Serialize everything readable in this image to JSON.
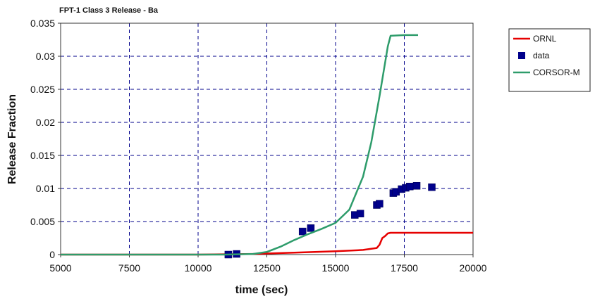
{
  "chart_data": {
    "type": "line",
    "title": "FPT-1 Class 3 Release - Ba",
    "xlabel": "time (sec)",
    "ylabel": "Release Fraction",
    "xlim": [
      5000,
      20000
    ],
    "ylim": [
      0,
      0.035
    ],
    "xticks": [
      5000,
      7500,
      10000,
      12500,
      15000,
      17500,
      20000
    ],
    "yticks": [
      0,
      0.005,
      0.01,
      0.015,
      0.02,
      0.025,
      0.03,
      0.035
    ],
    "xtick_labels": [
      "5000",
      "7500",
      "10000",
      "12500",
      "15000",
      "17500",
      "20000"
    ],
    "ytick_labels": [
      "0",
      "0.005",
      "0.01",
      "0.015",
      "0.02",
      "0.025",
      "0.03",
      "0.035"
    ],
    "grid": true,
    "legend_position": "right",
    "series": [
      {
        "name": "ORNL",
        "kind": "line",
        "color": "#e60000",
        "x": [
          5000,
          10000,
          12000,
          13500,
          15000,
          16000,
          16500,
          16600,
          16700,
          16800,
          16900,
          17000,
          18000,
          20000
        ],
        "y": [
          0,
          0,
          0.0001,
          0.0003,
          0.0005,
          0.0007,
          0.001,
          0.0015,
          0.0025,
          0.0028,
          0.0032,
          0.0033,
          0.0033,
          0.0033
        ]
      },
      {
        "name": "data",
        "kind": "scatter",
        "color": "#00008b",
        "x": [
          11100,
          11400,
          13800,
          14100,
          15700,
          15900,
          16500,
          16600,
          17100,
          17200,
          17400,
          17550,
          17700,
          17950,
          18500
        ],
        "y": [
          0,
          0.0001,
          0.0035,
          0.004,
          0.006,
          0.0062,
          0.0075,
          0.0077,
          0.0093,
          0.0095,
          0.0099,
          0.0101,
          0.0103,
          0.0104,
          0.0102
        ]
      },
      {
        "name": "CORSOR-M",
        "kind": "line",
        "color": "#2e9c6b",
        "x": [
          5000,
          11000,
          12000,
          12500,
          13000,
          13500,
          14000,
          14500,
          15000,
          15500,
          16000,
          16300,
          16600,
          16800,
          16900,
          17000,
          17500,
          18000
        ],
        "y": [
          0,
          0,
          0.0001,
          0.0004,
          0.0012,
          0.0022,
          0.0031,
          0.0039,
          0.0048,
          0.0068,
          0.0118,
          0.017,
          0.024,
          0.029,
          0.0315,
          0.0331,
          0.0332,
          0.0332
        ]
      }
    ]
  }
}
